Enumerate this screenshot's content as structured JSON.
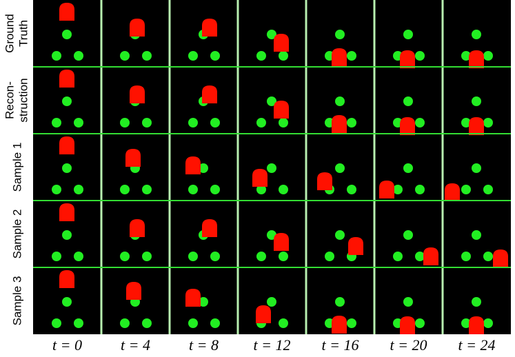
{
  "figure": {
    "row_labels": [
      {
        "lines": [
          "Ground",
          "Truth"
        ]
      },
      {
        "lines": [
          "Recon-",
          "struction"
        ]
      },
      {
        "lines": [
          "Sample 1"
        ]
      },
      {
        "lines": [
          "Sample 2"
        ]
      },
      {
        "lines": [
          "Sample 3"
        ]
      }
    ],
    "column_labels": [
      "t = 0",
      "t = 4",
      "t = 8",
      "t = 12",
      "t = 16",
      "t = 20",
      "t = 24"
    ]
  }
}
